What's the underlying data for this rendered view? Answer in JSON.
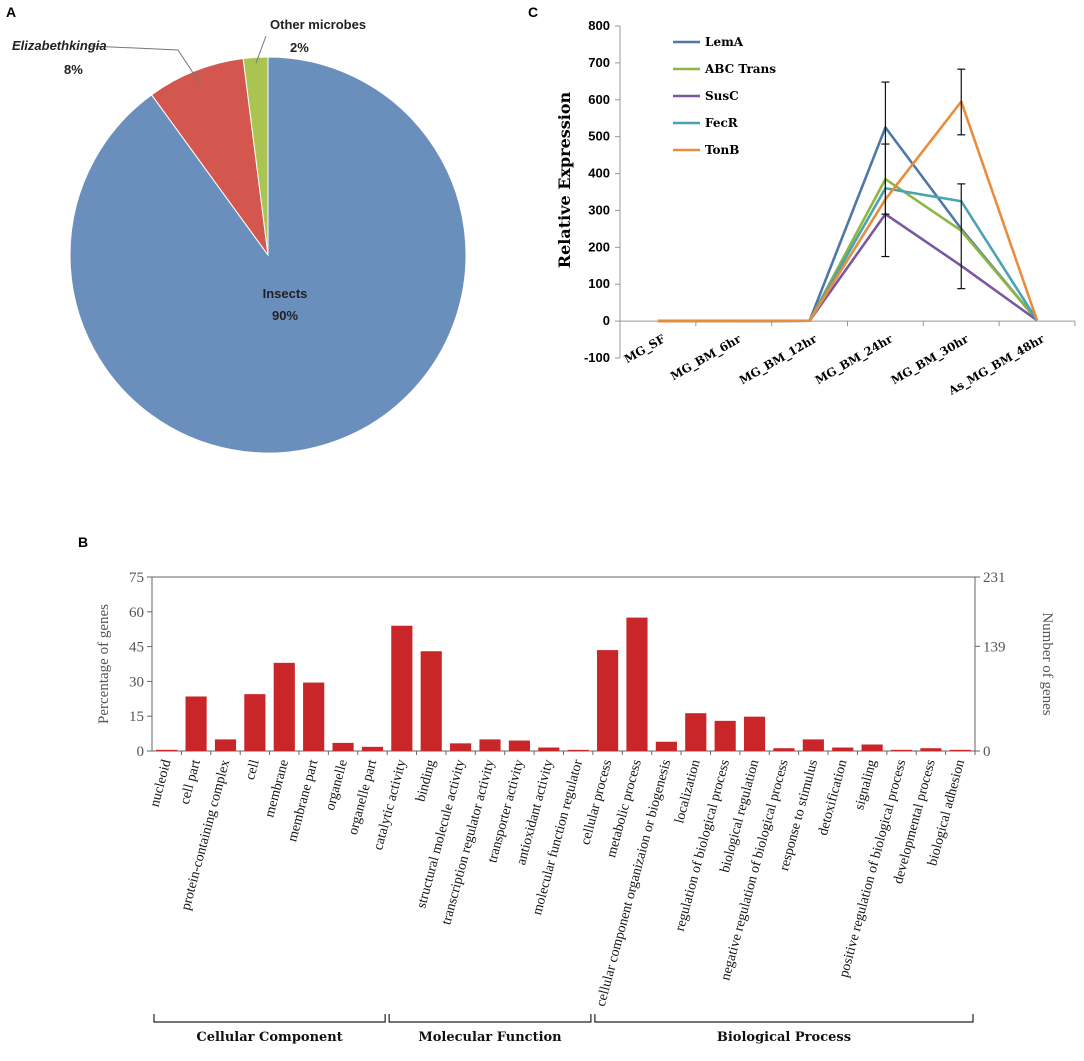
{
  "panels": {
    "a": "A",
    "b": "B",
    "c": "C"
  },
  "chart_data": [
    {
      "type": "pie",
      "panel": "A",
      "title": "",
      "slices": [
        {
          "name": "Insects",
          "label": "Insects",
          "value": 90,
          "display": "90%",
          "color": "#6a8fbd"
        },
        {
          "name": "Elizabethkingia",
          "label": "Elizabethkingia",
          "value": 8,
          "display": "8%",
          "color": "#d4574f"
        },
        {
          "name": "Other microbes",
          "label": "Other microbes",
          "value": 2,
          "display": "2%",
          "color": "#a9c452"
        }
      ]
    },
    {
      "type": "line",
      "panel": "C",
      "title": "",
      "xlabel": "",
      "ylabel": "Relative Expression",
      "ylim": [
        -100,
        800
      ],
      "yticks": [
        -100,
        0,
        100,
        200,
        300,
        400,
        500,
        600,
        700,
        800
      ],
      "categories": [
        "MG_SF",
        "MG_BM_6hr",
        "MG_BM_12hr",
        "MG_BM_24hr",
        "MG_BM_30hr",
        "As_MG_BM_48hr"
      ],
      "series": [
        {
          "name": "LemA",
          "color": "#4f77a8",
          "values": [
            0,
            0,
            1,
            525,
            250,
            2
          ]
        },
        {
          "name": "ABC Trans",
          "color": "#8db645",
          "values": [
            0,
            0,
            1,
            385,
            245,
            2
          ]
        },
        {
          "name": "SusC",
          "color": "#7a58a0",
          "values": [
            0,
            0,
            1,
            290,
            150,
            2
          ]
        },
        {
          "name": "FecR",
          "color": "#4aa3b1",
          "values": [
            0,
            0,
            1,
            360,
            325,
            2
          ]
        },
        {
          "name": "TonB",
          "color": "#e98d3c",
          "values": [
            0,
            0,
            1,
            330,
            595,
            2
          ]
        }
      ],
      "error_bars": [
        {
          "category": "MG_BM_24hr",
          "low": 175,
          "high": 648
        },
        {
          "category": "MG_BM_24hr",
          "low": 290,
          "high": 480
        },
        {
          "category": "MG_BM_30hr",
          "low": 88,
          "high": 372
        },
        {
          "category": "MG_BM_30hr",
          "low": 505,
          "high": 683
        }
      ]
    },
    {
      "type": "bar",
      "panel": "B",
      "title": "",
      "ylabel": "Percentage of genes",
      "y2label": "Number of genes",
      "ylim": [
        0,
        75
      ],
      "yticks": [
        0,
        15,
        30,
        45,
        60,
        75
      ],
      "y2ticks": [
        0,
        139,
        231
      ],
      "color": "#c9262a",
      "categories": [
        "nucleoid",
        "cell part",
        "protein-containing complex",
        "cell",
        "membrane",
        "membrane part",
        "organelle",
        "organelle part",
        "catalytic activity",
        "binding",
        "structural molecule activity",
        "transcription regulator activity",
        "transporter activity",
        "antioxidant activity",
        "molecular function regulator",
        "cellular process",
        "metabolic process",
        "cellular component organizaion or biogenesis",
        "localization",
        "regulation of biological process",
        "biological regulation",
        "negative regulation of biological process",
        "response to stimulus",
        "detoxification",
        "signaling",
        "positive regulation of biological process",
        "developmental process",
        "biological adhesion"
      ],
      "values": [
        0.5,
        23.5,
        5,
        24.5,
        38,
        29.5,
        3.5,
        1.8,
        54,
        43,
        3.3,
        5,
        4.5,
        1.5,
        0.5,
        43.5,
        57.5,
        4,
        16.3,
        13,
        14.8,
        1.2,
        5,
        1.5,
        2.8,
        0.5,
        1.2,
        0.5
      ],
      "groups": [
        {
          "name": "Cellular Component",
          "start": 0,
          "end": 7
        },
        {
          "name": "Molecular Function",
          "start": 8,
          "end": 14
        },
        {
          "name": "Biological Process",
          "start": 15,
          "end": 27
        }
      ]
    }
  ]
}
